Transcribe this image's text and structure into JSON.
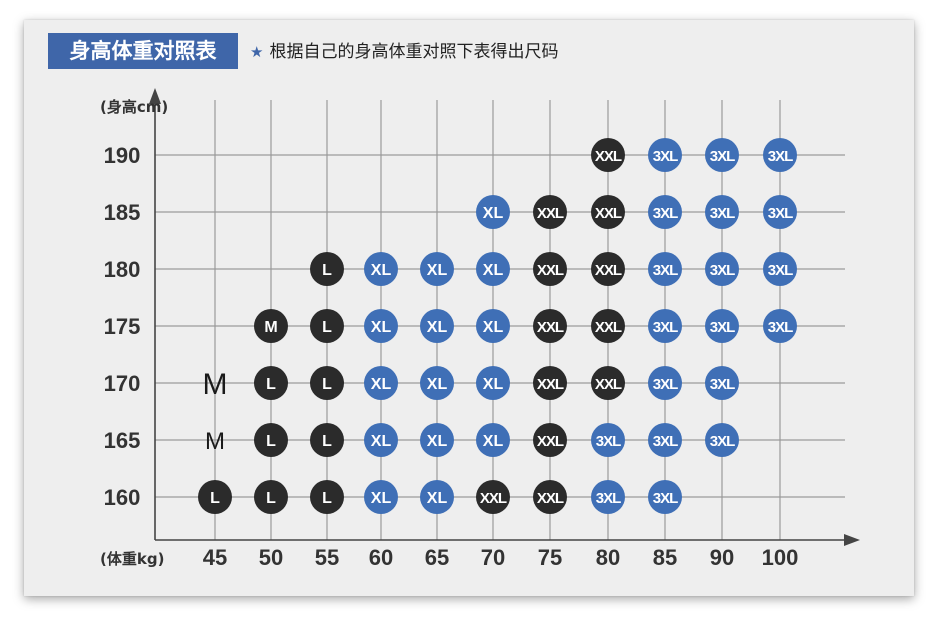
{
  "header": {
    "title": "身高体重对照表",
    "note_icon": "star-icon",
    "note": "根据自己的身高体重对照下表得出尺码"
  },
  "colors": {
    "blue": "#3f6fb6",
    "black": "#2b2b2b",
    "title_bg": "#3f66a9"
  },
  "chart_data": {
    "type": "scatter",
    "title": "身高体重对照表",
    "xlabel": "(体重kg)",
    "ylabel": "(身高cm)",
    "x_ticks": [
      45,
      50,
      55,
      60,
      65,
      70,
      75,
      80,
      85,
      90,
      100
    ],
    "y_ticks": [
      190,
      185,
      180,
      175,
      170,
      165,
      160
    ],
    "grid": true,
    "points": [
      {
        "weight": 80,
        "height": 190,
        "size": "XXL",
        "color": "black"
      },
      {
        "weight": 85,
        "height": 190,
        "size": "3XL",
        "color": "blue"
      },
      {
        "weight": 90,
        "height": 190,
        "size": "3XL",
        "color": "blue"
      },
      {
        "weight": 100,
        "height": 190,
        "size": "3XL",
        "color": "blue"
      },
      {
        "weight": 70,
        "height": 185,
        "size": "XL",
        "color": "blue"
      },
      {
        "weight": 75,
        "height": 185,
        "size": "XXL",
        "color": "black"
      },
      {
        "weight": 80,
        "height": 185,
        "size": "XXL",
        "color": "black"
      },
      {
        "weight": 85,
        "height": 185,
        "size": "3XL",
        "color": "blue"
      },
      {
        "weight": 90,
        "height": 185,
        "size": "3XL",
        "color": "blue"
      },
      {
        "weight": 100,
        "height": 185,
        "size": "3XL",
        "color": "blue"
      },
      {
        "weight": 55,
        "height": 180,
        "size": "L",
        "color": "black"
      },
      {
        "weight": 60,
        "height": 180,
        "size": "XL",
        "color": "blue"
      },
      {
        "weight": 65,
        "height": 180,
        "size": "XL",
        "color": "blue"
      },
      {
        "weight": 70,
        "height": 180,
        "size": "XL",
        "color": "blue"
      },
      {
        "weight": 75,
        "height": 180,
        "size": "XXL",
        "color": "black"
      },
      {
        "weight": 80,
        "height": 180,
        "size": "XXL",
        "color": "black"
      },
      {
        "weight": 85,
        "height": 180,
        "size": "3XL",
        "color": "blue"
      },
      {
        "weight": 90,
        "height": 180,
        "size": "3XL",
        "color": "blue"
      },
      {
        "weight": 100,
        "height": 180,
        "size": "3XL",
        "color": "blue"
      },
      {
        "weight": 50,
        "height": 175,
        "size": "M",
        "color": "black"
      },
      {
        "weight": 55,
        "height": 175,
        "size": "L",
        "color": "black"
      },
      {
        "weight": 60,
        "height": 175,
        "size": "XL",
        "color": "blue"
      },
      {
        "weight": 65,
        "height": 175,
        "size": "XL",
        "color": "blue"
      },
      {
        "weight": 70,
        "height": 175,
        "size": "XL",
        "color": "blue"
      },
      {
        "weight": 75,
        "height": 175,
        "size": "XXL",
        "color": "black"
      },
      {
        "weight": 80,
        "height": 175,
        "size": "XXL",
        "color": "black"
      },
      {
        "weight": 85,
        "height": 175,
        "size": "3XL",
        "color": "blue"
      },
      {
        "weight": 90,
        "height": 175,
        "size": "3XL",
        "color": "blue"
      },
      {
        "weight": 100,
        "height": 175,
        "size": "3XL",
        "color": "blue"
      },
      {
        "weight": 45,
        "height": 170,
        "size": "M",
        "color": "none"
      },
      {
        "weight": 50,
        "height": 170,
        "size": "L",
        "color": "black"
      },
      {
        "weight": 55,
        "height": 170,
        "size": "L",
        "color": "black"
      },
      {
        "weight": 60,
        "height": 170,
        "size": "XL",
        "color": "blue"
      },
      {
        "weight": 65,
        "height": 170,
        "size": "XL",
        "color": "blue"
      },
      {
        "weight": 70,
        "height": 170,
        "size": "XL",
        "color": "blue"
      },
      {
        "weight": 75,
        "height": 170,
        "size": "XXL",
        "color": "black"
      },
      {
        "weight": 80,
        "height": 170,
        "size": "XXL",
        "color": "black"
      },
      {
        "weight": 85,
        "height": 170,
        "size": "3XL",
        "color": "blue"
      },
      {
        "weight": 90,
        "height": 170,
        "size": "3XL",
        "color": "blue"
      },
      {
        "weight": 45,
        "height": 165,
        "size": "M",
        "color": "none"
      },
      {
        "weight": 50,
        "height": 165,
        "size": "L",
        "color": "black"
      },
      {
        "weight": 55,
        "height": 165,
        "size": "L",
        "color": "black"
      },
      {
        "weight": 60,
        "height": 165,
        "size": "XL",
        "color": "blue"
      },
      {
        "weight": 65,
        "height": 165,
        "size": "XL",
        "color": "blue"
      },
      {
        "weight": 70,
        "height": 165,
        "size": "XL",
        "color": "blue"
      },
      {
        "weight": 75,
        "height": 165,
        "size": "XXL",
        "color": "black"
      },
      {
        "weight": 80,
        "height": 165,
        "size": "3XL",
        "color": "blue"
      },
      {
        "weight": 85,
        "height": 165,
        "size": "3XL",
        "color": "blue"
      },
      {
        "weight": 90,
        "height": 165,
        "size": "3XL",
        "color": "blue"
      },
      {
        "weight": 45,
        "height": 160,
        "size": "L",
        "color": "black"
      },
      {
        "weight": 50,
        "height": 160,
        "size": "L",
        "color": "black"
      },
      {
        "weight": 55,
        "height": 160,
        "size": "L",
        "color": "black"
      },
      {
        "weight": 60,
        "height": 160,
        "size": "XL",
        "color": "blue"
      },
      {
        "weight": 65,
        "height": 160,
        "size": "XL",
        "color": "blue"
      },
      {
        "weight": 70,
        "height": 160,
        "size": "XXL",
        "color": "black"
      },
      {
        "weight": 75,
        "height": 160,
        "size": "XXL",
        "color": "black"
      },
      {
        "weight": 80,
        "height": 160,
        "size": "3XL",
        "color": "blue"
      },
      {
        "weight": 85,
        "height": 160,
        "size": "3XL",
        "color": "blue"
      }
    ]
  }
}
